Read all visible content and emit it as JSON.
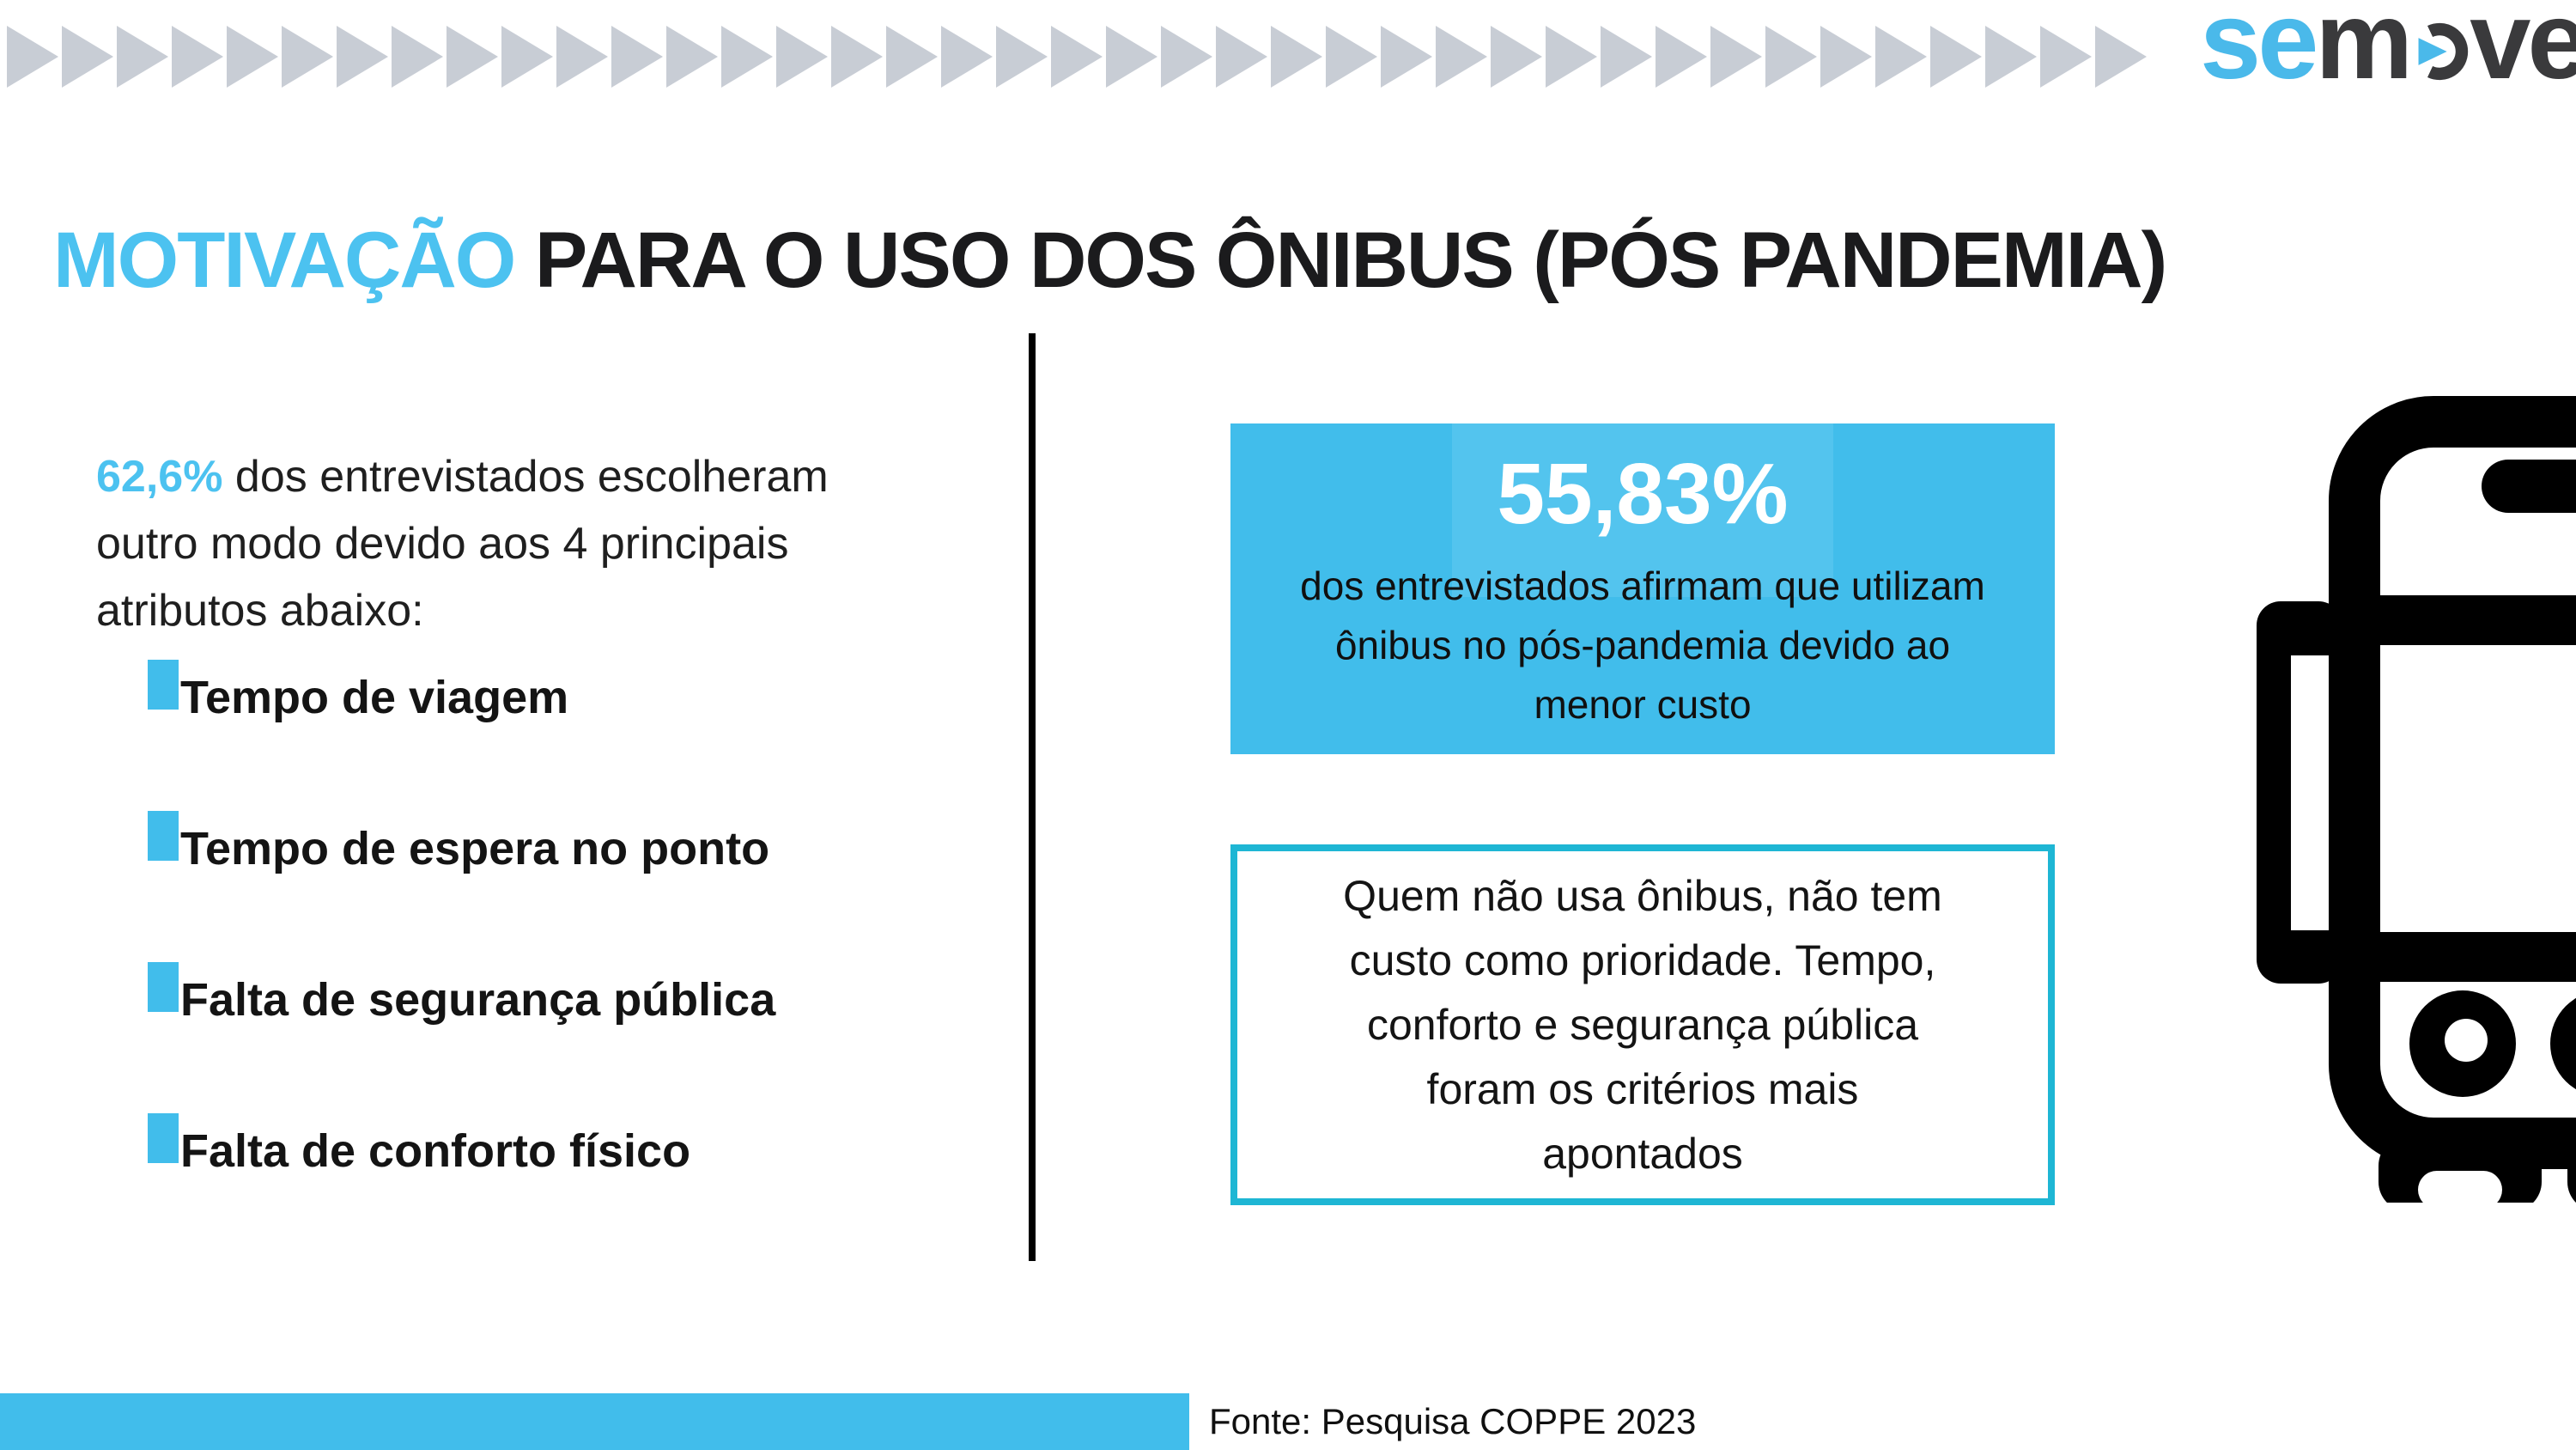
{
  "logo": {
    "se": "se",
    "m": "m",
    "ve": "ve"
  },
  "title": {
    "highlight": "MOTIVAÇÃO",
    "rest": " PARA O USO DOS ÔNIBUS (PÓS PANDEMIA)"
  },
  "left": {
    "intro_highlight": "62,6%",
    "intro_rest": " dos entrevistados escolheram\noutro modo devido aos 4 principais\natributos abaixo:",
    "bullets": [
      "Tempo de viagem",
      "Tempo de espera no ponto",
      "Falta de segurança pública",
      "Falta de conforto físico"
    ]
  },
  "stat_box": {
    "value": "55,83%",
    "description": "dos entrevistados afirmam que utilizam\nônibus no pós-pandemia devido ao\nmenor custo"
  },
  "note_box": {
    "text": "Quem não usa ônibus, não tem\ncusto como prioridade. Tempo,\nconforto e segurança pública\nforam os critérios mais\napontados"
  },
  "footer": {
    "source": "Fonte: Pesquisa COPPE 2023"
  },
  "decoration": {
    "arrow_count": 39
  },
  "icons": {
    "arrows": "right-arrow-icon",
    "logo_play": "play-triangle-icon",
    "bus": "bus-front-icon"
  },
  "colors": {
    "accent_blue": "#41BDEB",
    "title_blue": "#4CC2F0",
    "logo_blue": "#4AB9EA",
    "logo_dark": "#3A3A3C",
    "arrow_gray": "#C8CDD5",
    "note_border_teal": "#1EB6D4",
    "stat_highlight_blue": "#53C4EE",
    "divider_black": "#000000"
  }
}
